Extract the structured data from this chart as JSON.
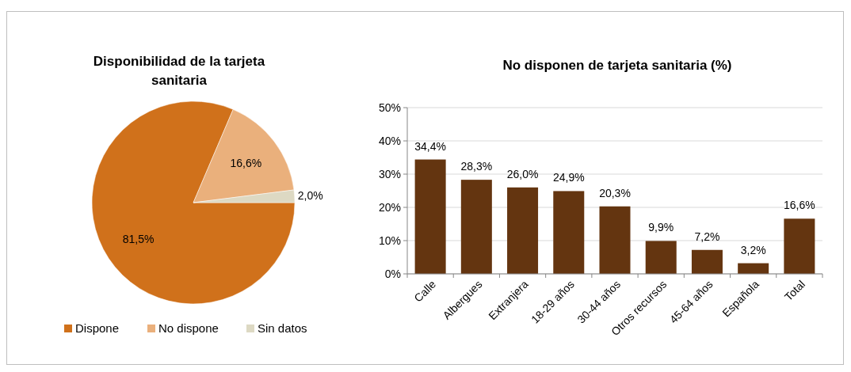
{
  "chart_data": [
    {
      "type": "pie",
      "title": "Disponibilidad de la tarjeta sanitaria",
      "categories": [
        "Dispone",
        "No dispone",
        "Sin datos"
      ],
      "values": [
        81.5,
        16.6,
        2.0
      ],
      "colors": [
        "#d0711b",
        "#eab07c",
        "#ddd9c3"
      ],
      "value_labels": [
        "81,5%",
        "16,6%",
        "2,0%"
      ],
      "legend": "bottom"
    },
    {
      "type": "bar",
      "title": "No disponen de tarjeta sanitaria (%)",
      "categories": [
        "Calle",
        "Albergues",
        "Extranjera",
        "18-29 años",
        "30-44 años",
        "Otros recursos",
        "45-64 años",
        "Española",
        "Total"
      ],
      "values": [
        34.4,
        28.3,
        26.0,
        24.9,
        20.3,
        9.9,
        7.2,
        3.2,
        16.6
      ],
      "color": "#643510",
      "value_labels": [
        "34,4%",
        "28,3%",
        "26,0%",
        "24,9%",
        "20,3%",
        "9,9%",
        "7,2%",
        "3,2%",
        "16,6%"
      ],
      "ylim": [
        0,
        50
      ],
      "yticks": [
        {
          "value": 0,
          "label": "0%"
        },
        {
          "value": 10,
          "label": "10%"
        },
        {
          "value": 20,
          "label": "20%"
        },
        {
          "value": 30,
          "label": "30%"
        },
        {
          "value": 40,
          "label": "40%"
        },
        {
          "value": 50,
          "label": "50%"
        }
      ],
      "grid": "y"
    }
  ]
}
